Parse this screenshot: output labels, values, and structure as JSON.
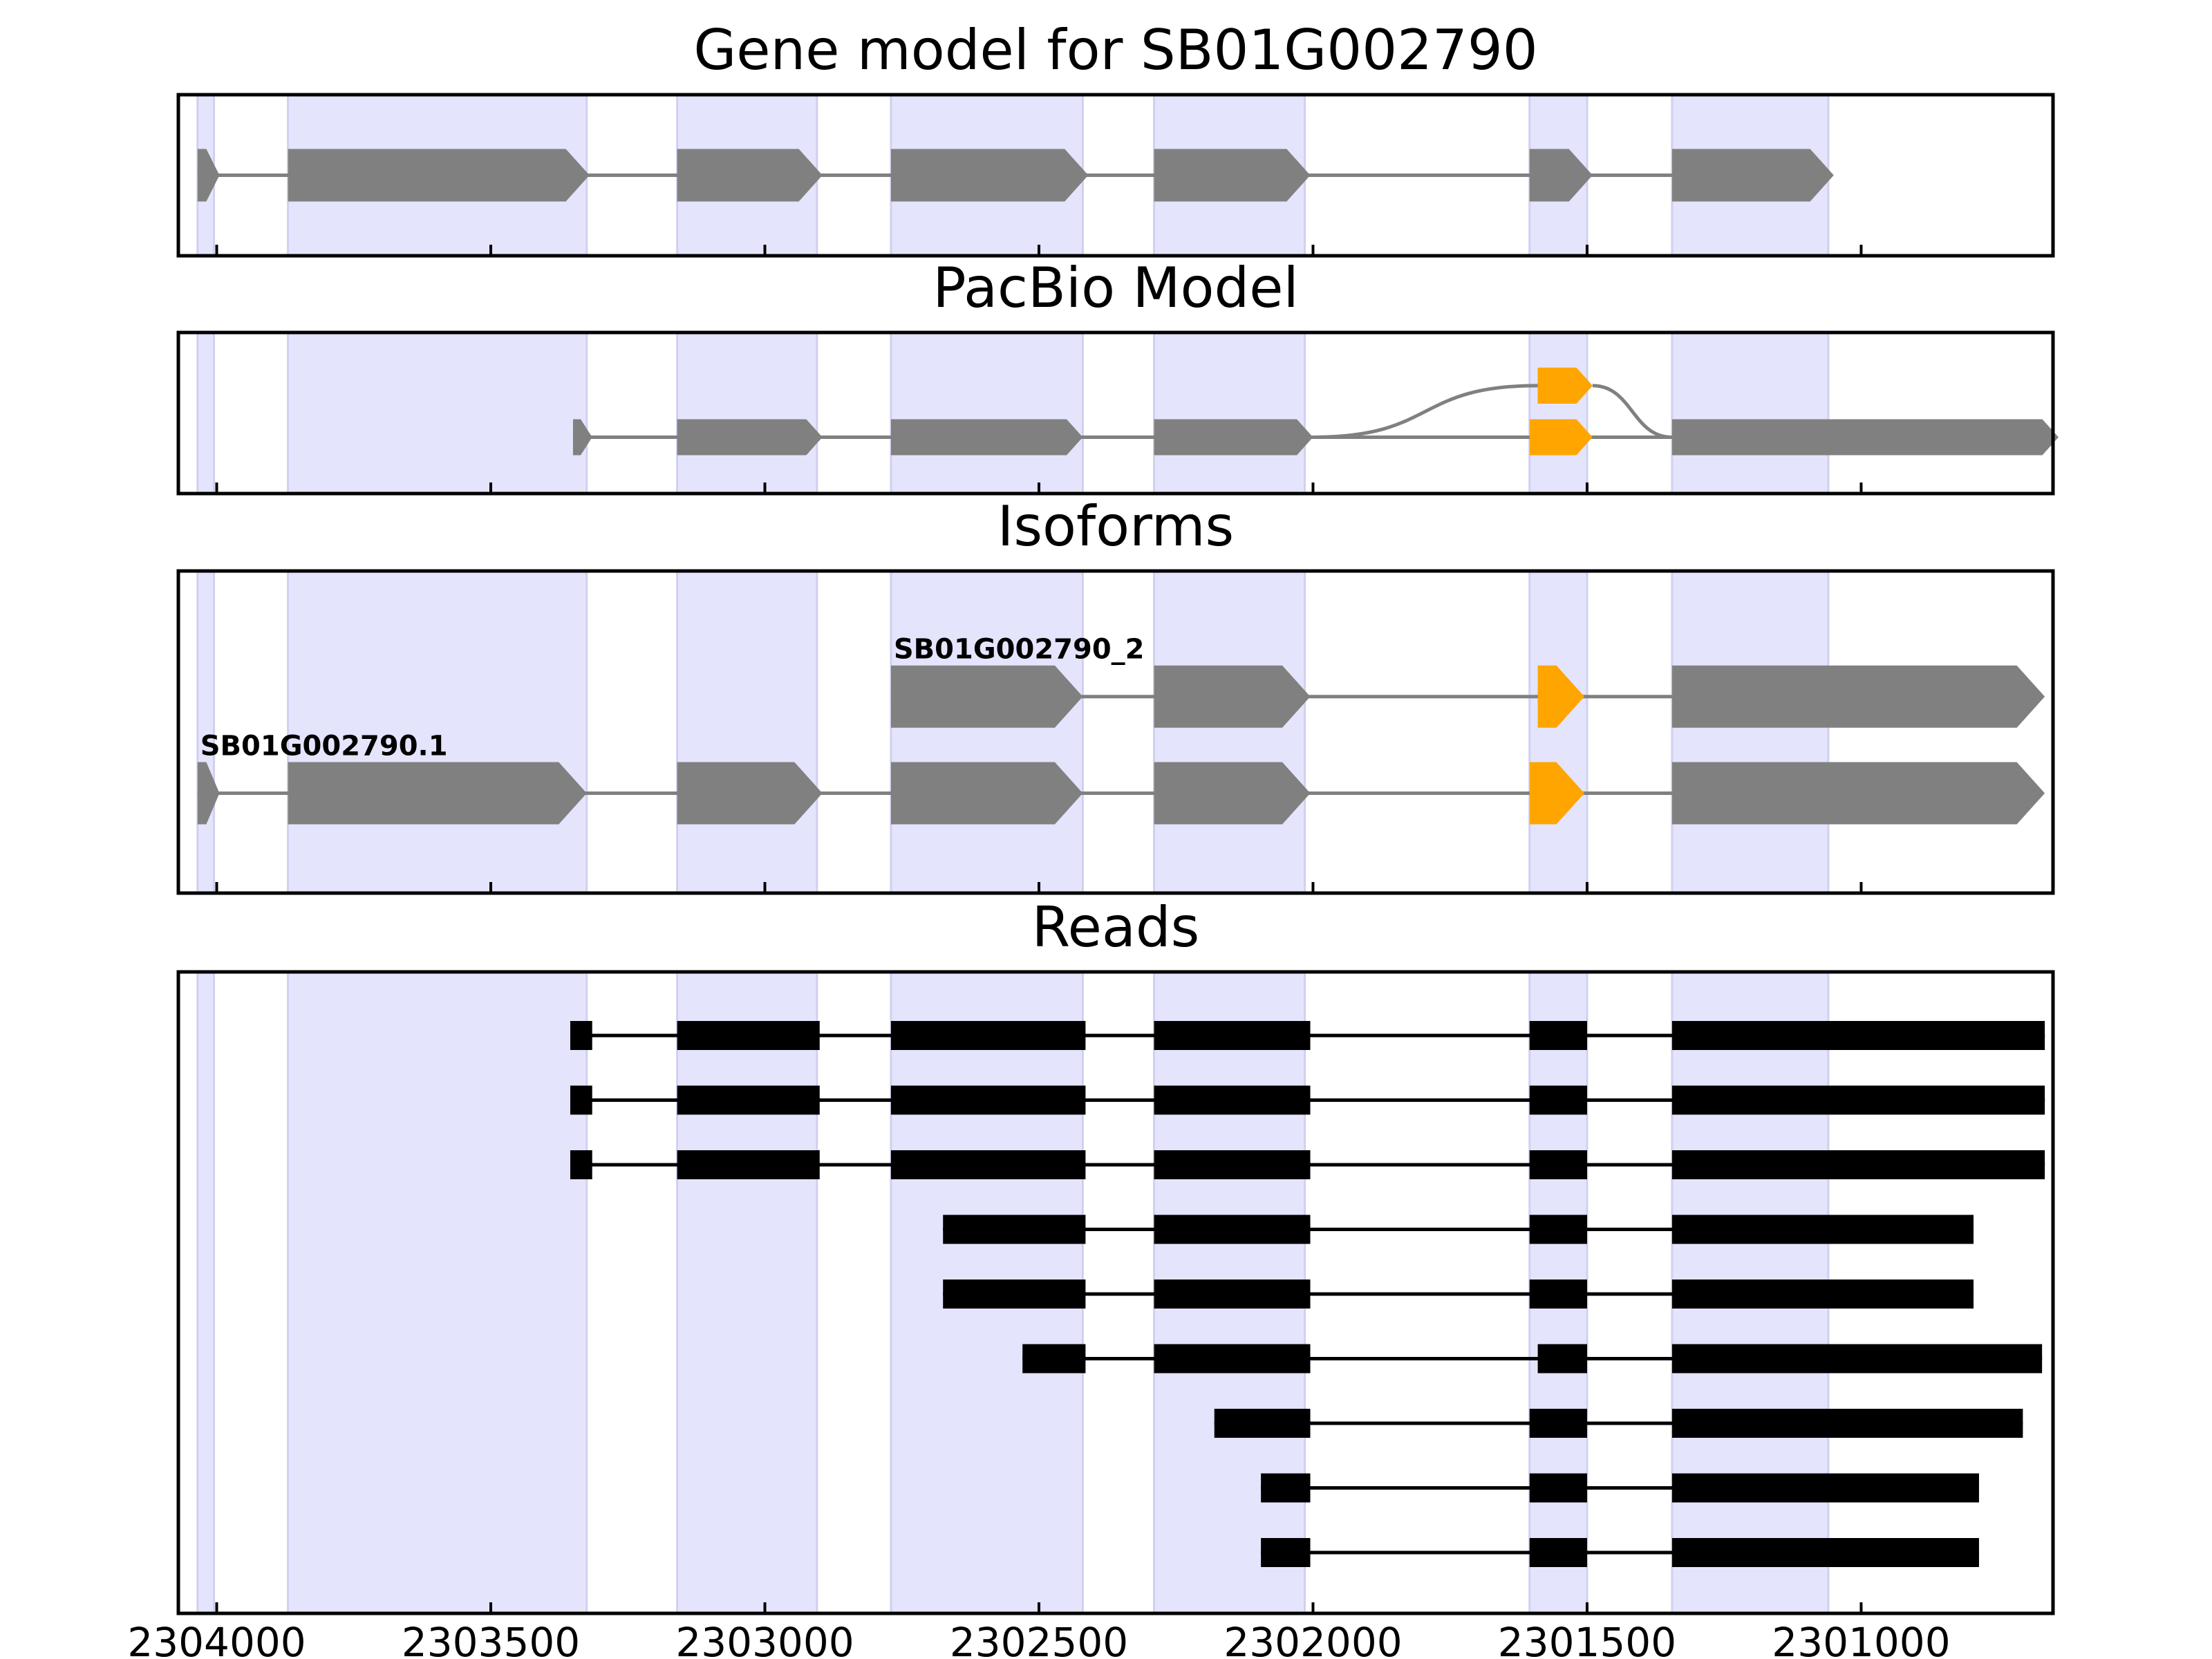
{
  "chart_data": {
    "type": "gene-structure",
    "x_axis": {
      "reversed": true,
      "range": [
        2304070,
        2300650
      ],
      "ticks": [
        2304000,
        2303500,
        2303000,
        2302500,
        2302000,
        2301500,
        2301000
      ],
      "tick_labels": [
        "2304000",
        "2303500",
        "2303000",
        "2302500",
        "2302000",
        "2301500",
        "2301000"
      ]
    },
    "colors": {
      "shade": "#e4e4fc",
      "shade_edge": "#d0d0f0",
      "exon": "#808080",
      "alt_exon": "#ffa500",
      "read": "#000000",
      "frame": "#000000"
    },
    "exon_shading": [
      [
        2304035,
        2304005
      ],
      [
        2303870,
        2303325
      ],
      [
        2303160,
        2302905
      ],
      [
        2302770,
        2302420
      ],
      [
        2302290,
        2302015
      ],
      [
        2301605,
        2301500
      ],
      [
        2301345,
        2301060
      ]
    ],
    "panels": [
      {
        "title": "Gene model for SB01G002790",
        "tracks": [
          {
            "y": 0.5,
            "label": "",
            "exons": [
              [
                2304035,
                2303995,
                "gray"
              ],
              [
                2303870,
                2303320,
                "gray"
              ],
              [
                2303160,
                2302895,
                "gray"
              ],
              [
                2302770,
                2302410,
                "gray"
              ],
              [
                2302290,
                2302005,
                "gray"
              ],
              [
                2301605,
                2301490,
                "gray"
              ],
              [
                2301345,
                2301050,
                "gray"
              ]
            ]
          }
        ]
      },
      {
        "title": "PacBio Model",
        "tracks": [
          {
            "y": 0.65,
            "label": "",
            "exons": [
              [
                2303350,
                2303315,
                "gray"
              ],
              [
                2303160,
                2302895,
                "gray"
              ],
              [
                2302770,
                2302420,
                "gray"
              ],
              [
                2302290,
                2302000,
                "gray"
              ],
              [
                2301605,
                2301490,
                "orange"
              ],
              [
                2301345,
                2300640,
                "gray"
              ]
            ]
          },
          {
            "y": 0.33,
            "label": "",
            "exons": [
              [
                2301590,
                2301490,
                "orange"
              ]
            ]
          }
        ],
        "alt_splice": {
          "from": [
            2302000,
            0.65
          ],
          "to": [
            2301590,
            0.33
          ],
          "back_from": [
            2301490,
            0.33
          ],
          "back_to": [
            2301345,
            0.65
          ]
        }
      },
      {
        "title": "Isoforms",
        "tracks": [
          {
            "y": 0.39,
            "label": "SB01G002790_2",
            "exons": [
              [
                2302770,
                2302420,
                "gray"
              ],
              [
                2302290,
                2302005,
                "gray"
              ],
              [
                2301590,
                2301505,
                "orange"
              ],
              [
                2301345,
                2300665,
                "gray"
              ]
            ]
          },
          {
            "y": 0.69,
            "label": "SB01G002790.1",
            "exons": [
              [
                2304035,
                2303995,
                "gray"
              ],
              [
                2303870,
                2303325,
                "gray"
              ],
              [
                2303160,
                2302895,
                "gray"
              ],
              [
                2302770,
                2302420,
                "gray"
              ],
              [
                2302290,
                2302005,
                "gray"
              ],
              [
                2301605,
                2301505,
                "orange"
              ],
              [
                2301345,
                2300665,
                "gray"
              ]
            ]
          }
        ]
      },
      {
        "title": "Reads",
        "reads": [
          [
            [
              2303355,
              2303315
            ],
            [
              2303160,
              2302900
            ],
            [
              2302770,
              2302415
            ],
            [
              2302290,
              2302005
            ],
            [
              2301605,
              2301500
            ],
            [
              2301345,
              2300665
            ]
          ],
          [
            [
              2303355,
              2303315
            ],
            [
              2303160,
              2302900
            ],
            [
              2302770,
              2302415
            ],
            [
              2302290,
              2302005
            ],
            [
              2301605,
              2301500
            ],
            [
              2301345,
              2300665
            ]
          ],
          [
            [
              2303355,
              2303315
            ],
            [
              2303160,
              2302900
            ],
            [
              2302770,
              2302415
            ],
            [
              2302290,
              2302005
            ],
            [
              2301605,
              2301500
            ],
            [
              2301345,
              2300665
            ]
          ],
          [
            [
              2302675,
              2302415
            ],
            [
              2302290,
              2302005
            ],
            [
              2301605,
              2301500
            ],
            [
              2301345,
              2300795
            ]
          ],
          [
            [
              2302675,
              2302415
            ],
            [
              2302290,
              2302005
            ],
            [
              2301605,
              2301500
            ],
            [
              2301345,
              2300795
            ]
          ],
          [
            [
              2302530,
              2302415
            ],
            [
              2302290,
              2302005
            ],
            [
              2301590,
              2301500
            ],
            [
              2301345,
              2300670
            ]
          ],
          [
            [
              2302180,
              2302005
            ],
            [
              2301605,
              2301500
            ],
            [
              2301345,
              2300705
            ]
          ],
          [
            [
              2302095,
              2302005
            ],
            [
              2301605,
              2301500
            ],
            [
              2301345,
              2300785
            ]
          ],
          [
            [
              2302095,
              2302005
            ],
            [
              2301605,
              2301500
            ],
            [
              2301345,
              2300785
            ]
          ]
        ]
      }
    ]
  }
}
